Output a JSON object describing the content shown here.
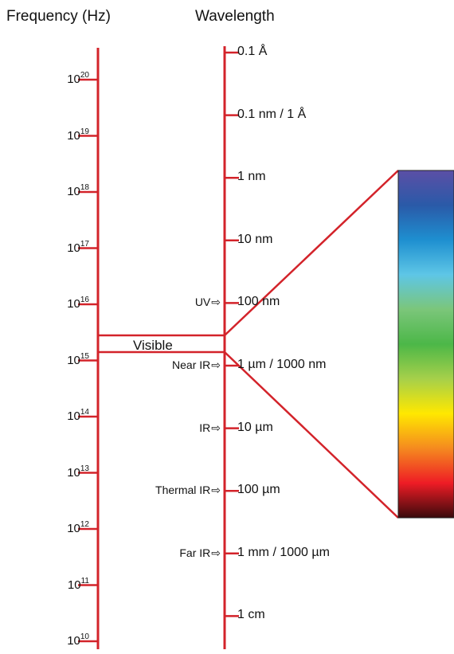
{
  "headers": {
    "frequency": "Frequency (Hz)",
    "wavelength": "Wavelength"
  },
  "frequency_ticks": [
    {
      "base": "10",
      "exp": "20"
    },
    {
      "base": "10",
      "exp": "19"
    },
    {
      "base": "10",
      "exp": "18"
    },
    {
      "base": "10",
      "exp": "17"
    },
    {
      "base": "10",
      "exp": "16"
    },
    {
      "base": "10",
      "exp": "15"
    },
    {
      "base": "10",
      "exp": "14"
    },
    {
      "base": "10",
      "exp": "13"
    },
    {
      "base": "10",
      "exp": "12"
    },
    {
      "base": "10",
      "exp": "11"
    },
    {
      "base": "10",
      "exp": "10"
    }
  ],
  "wavelength_ticks": [
    "0.1 Å",
    "0.1 nm / 1 Å",
    "1 nm",
    "10 nm",
    "100 nm",
    "1 µm / 1000 nm",
    "10 µm",
    "100 µm",
    "1 mm / 1000 µm",
    "1 cm"
  ],
  "bands": [
    {
      "label": "UV",
      "arrow": "⇨"
    },
    {
      "label": "Near IR",
      "arrow": "⇨"
    },
    {
      "label": "IR",
      "arrow": "⇨"
    },
    {
      "label": "Thermal IR",
      "arrow": "⇨"
    },
    {
      "label": "Far IR",
      "arrow": "⇨"
    }
  ],
  "visible_label": "Visible",
  "colors": {
    "axis": "#d3232a",
    "text": "#111111",
    "spectrum": [
      "#5b4fa6",
      "#2a5aa8",
      "#1e8fd0",
      "#5ec6e6",
      "#7bc67a",
      "#4cb748",
      "#a6d04a",
      "#ffe800",
      "#f58a1f",
      "#ee1c25",
      "#3a0a0c"
    ]
  }
}
